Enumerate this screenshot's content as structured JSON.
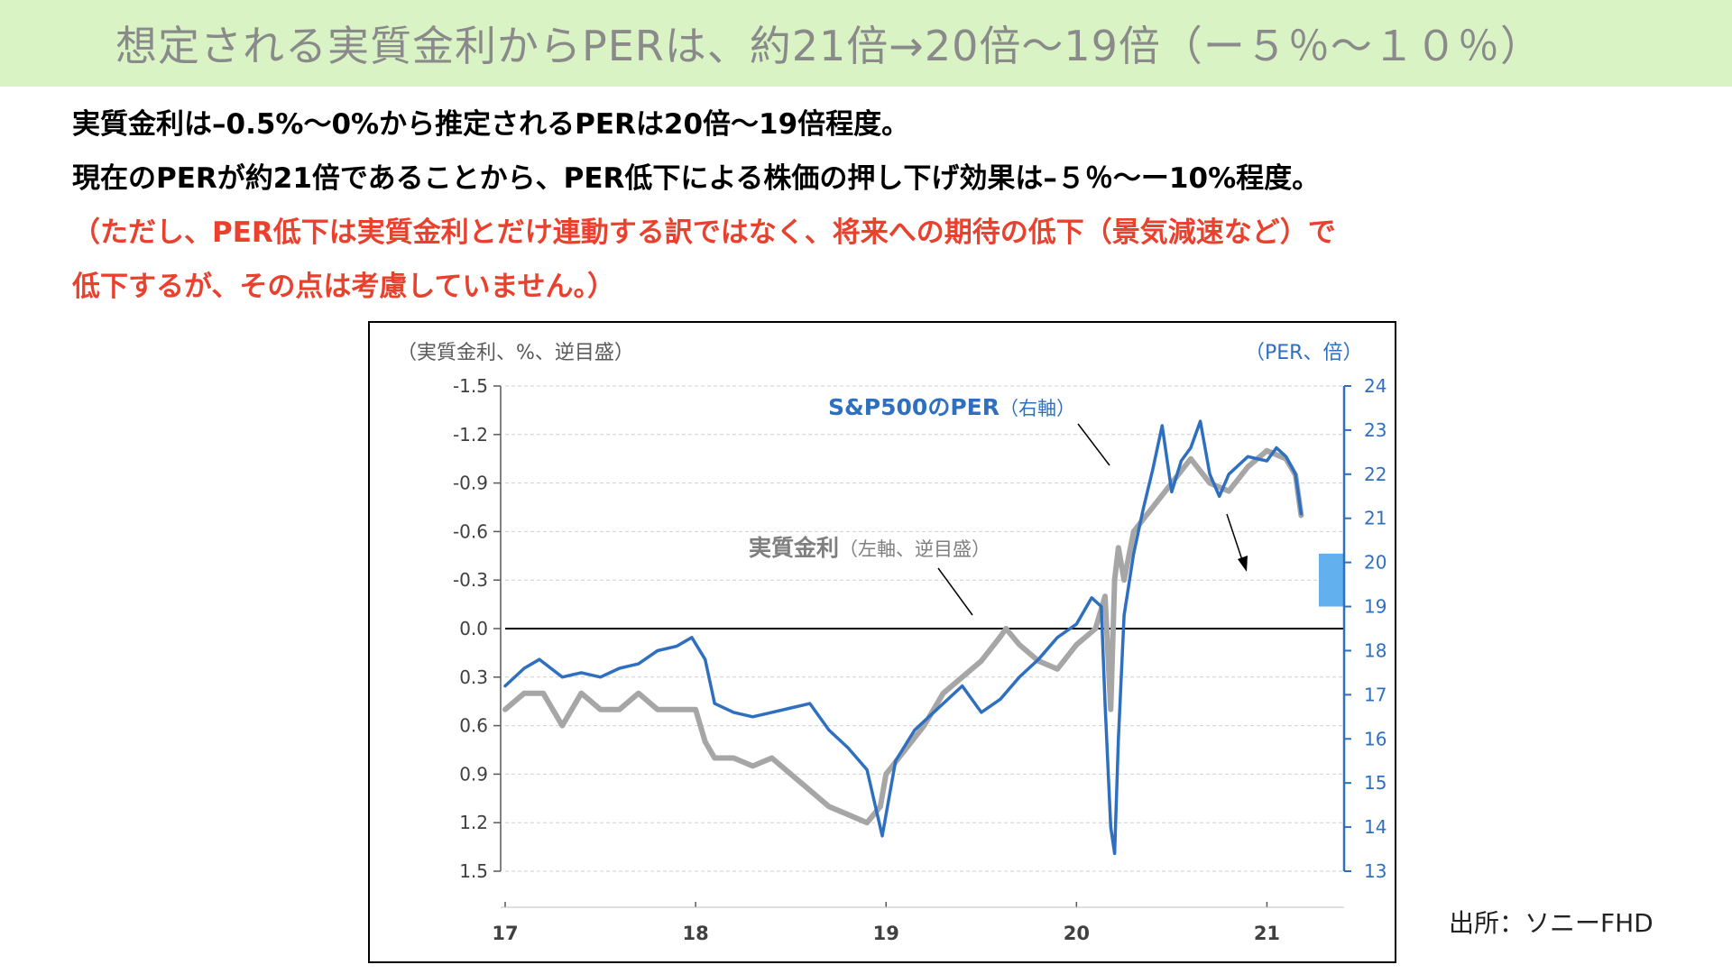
{
  "banner": {
    "title": "想定される実質金利からPERは、約21倍→20倍～19倍（ー５％～１０％）"
  },
  "body": {
    "line1": "実質金利は–0.5%～0%から推定されるPERは20倍～19倍程度。",
    "line2": "現在のPERが約21倍であることから、PER低下による株価の押し下げ効果は–５％～ー10%程度。",
    "line3": "（ただし、PER低下は実質金利とだけ連動する訳ではなく、将来への期待の低下（景気減速など）で",
    "line4": "低下するが、その点は考慮していません。）"
  },
  "source": "出所：ソニーFHD",
  "colors": {
    "banner_bg": "#d9f3c5",
    "red_text": "#e8422f",
    "per_line": "#2e6fbf",
    "rate_line": "#a6a6a6",
    "highlight_bar": "#63b0ee"
  },
  "chart_data": {
    "type": "line",
    "left_axis_label": "（実質金利、%、逆目盛）",
    "right_axis_label": "（PER、倍）",
    "left_axis": {
      "ticks": [
        "-1.5",
        "-1.2",
        "-0.9",
        "-0.6",
        "-0.3",
        "0.0",
        "0.3",
        "0.6",
        "0.9",
        "1.2",
        "1.5"
      ],
      "ylim": [
        -1.5,
        1.5
      ],
      "inverted": true
    },
    "right_axis": {
      "ticks": [
        "24",
        "23",
        "22",
        "21",
        "20",
        "19",
        "18",
        "17",
        "16",
        "15",
        "14",
        "13"
      ],
      "ylim": [
        13,
        24
      ]
    },
    "x_axis": {
      "ticks": [
        "17",
        "18",
        "19",
        "20",
        "21"
      ],
      "range": [
        2017,
        2021.5
      ]
    },
    "grid": "horizontal dashed",
    "zero_line": 0.0,
    "annotations": {
      "per": {
        "series_label": "S&P500のPER",
        "axis_note": "（右軸）"
      },
      "rate": {
        "series_label": "実質金利",
        "axis_note": "（左軸、逆目盛）"
      }
    },
    "highlight_range": {
      "per_low": 19,
      "per_high": 20.2
    },
    "series": [
      {
        "name": "実質金利",
        "axis": "left",
        "x": [
          2017.0,
          2017.1,
          2017.2,
          2017.3,
          2017.4,
          2017.5,
          2017.6,
          2017.7,
          2017.8,
          2017.9,
          2018.0,
          2018.05,
          2018.1,
          2018.2,
          2018.3,
          2018.4,
          2018.5,
          2018.6,
          2018.7,
          2018.8,
          2018.9,
          2018.97,
          2019.0,
          2019.1,
          2019.2,
          2019.3,
          2019.4,
          2019.5,
          2019.6,
          2019.63,
          2019.7,
          2019.8,
          2019.9,
          2020.0,
          2020.1,
          2020.15,
          2020.18,
          2020.2,
          2020.22,
          2020.25,
          2020.3,
          2020.4,
          2020.5,
          2020.6,
          2020.7,
          2020.8,
          2020.9,
          2021.0,
          2021.1,
          2021.15,
          2021.18
        ],
        "values": [
          0.5,
          0.4,
          0.4,
          0.6,
          0.4,
          0.5,
          0.5,
          0.4,
          0.5,
          0.5,
          0.5,
          0.7,
          0.8,
          0.8,
          0.85,
          0.8,
          0.9,
          1.0,
          1.1,
          1.15,
          1.2,
          1.1,
          0.9,
          0.75,
          0.6,
          0.4,
          0.3,
          0.2,
          0.05,
          0.0,
          0.1,
          0.2,
          0.25,
          0.1,
          0.0,
          -0.2,
          0.5,
          -0.3,
          -0.5,
          -0.3,
          -0.6,
          -0.75,
          -0.9,
          -1.05,
          -0.9,
          -0.85,
          -1.0,
          -1.1,
          -1.05,
          -0.95,
          -0.7
        ]
      },
      {
        "name": "S&P500のPER",
        "axis": "right",
        "x": [
          2017.0,
          2017.1,
          2017.18,
          2017.3,
          2017.4,
          2017.5,
          2017.6,
          2017.7,
          2017.8,
          2017.9,
          2017.98,
          2018.05,
          2018.1,
          2018.2,
          2018.3,
          2018.4,
          2018.5,
          2018.6,
          2018.7,
          2018.8,
          2018.9,
          2018.98,
          2019.05,
          2019.15,
          2019.3,
          2019.4,
          2019.5,
          2019.6,
          2019.7,
          2019.8,
          2019.9,
          2020.0,
          2020.08,
          2020.13,
          2020.15,
          2020.18,
          2020.2,
          2020.22,
          2020.25,
          2020.3,
          2020.35,
          2020.4,
          2020.45,
          2020.5,
          2020.55,
          2020.6,
          2020.65,
          2020.7,
          2020.75,
          2020.8,
          2020.9,
          2021.0,
          2021.05,
          2021.1,
          2021.15,
          2021.18
        ],
        "values": [
          17.2,
          17.6,
          17.8,
          17.4,
          17.5,
          17.4,
          17.6,
          17.7,
          18.0,
          18.1,
          18.3,
          17.8,
          16.8,
          16.6,
          16.5,
          16.6,
          16.7,
          16.8,
          16.2,
          15.8,
          15.3,
          13.8,
          15.5,
          16.2,
          16.8,
          17.2,
          16.6,
          16.9,
          17.4,
          17.8,
          18.3,
          18.6,
          19.2,
          19.0,
          16.8,
          14.0,
          13.4,
          16.0,
          18.8,
          20.2,
          21.2,
          22.1,
          23.1,
          21.6,
          22.3,
          22.6,
          23.2,
          22.0,
          21.5,
          22.0,
          22.4,
          22.3,
          22.6,
          22.4,
          22.0,
          21.1
        ]
      }
    ]
  }
}
